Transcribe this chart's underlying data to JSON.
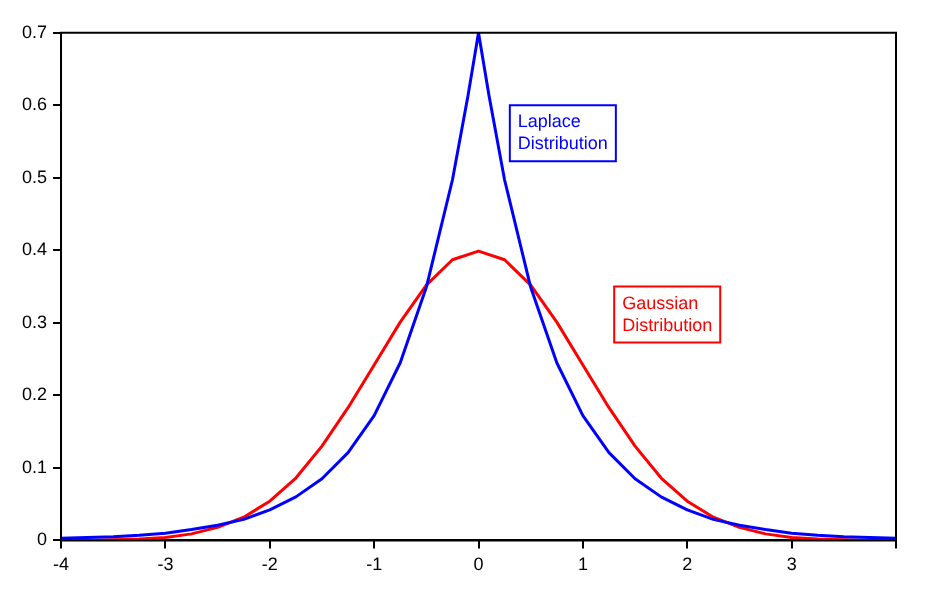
{
  "chart_data": {
    "type": "line",
    "xlim": [
      -4,
      4
    ],
    "xticks": [
      -4,
      -3,
      -2,
      -1,
      0,
      1,
      2,
      3,
      {
        "value": 4,
        "label": null
      }
    ],
    "ylim": [
      0,
      0.7
    ],
    "yticks": [
      0,
      0.1,
      0.2,
      0.3,
      0.4,
      0.5,
      0.6,
      0.7
    ],
    "grid": false,
    "legend": false,
    "marker": "none",
    "line_style": "solid",
    "series": [
      {
        "color": "#0000ff",
        "x": [
          -4,
          -3.75,
          -3.5,
          -3.25,
          -3,
          -2.75,
          -2.5,
          -2.25,
          -2,
          -1.75,
          -1.5,
          -1.25,
          -1,
          -0.75,
          -0.5,
          -0.25,
          -0.1,
          0,
          0.1,
          0.25,
          0.5,
          0.75,
          1,
          1.25,
          1.5,
          1.75,
          2,
          2.25,
          2.5,
          2.75,
          3,
          3.25,
          3.5,
          3.75,
          4
        ],
        "values": [
          0.003,
          0.004,
          0.005,
          0.007,
          0.01,
          0.015,
          0.021,
          0.029,
          0.042,
          0.06,
          0.085,
          0.121,
          0.172,
          0.245,
          0.349,
          0.497,
          0.614,
          0.7,
          0.614,
          0.497,
          0.349,
          0.245,
          0.172,
          0.121,
          0.085,
          0.06,
          0.042,
          0.029,
          0.021,
          0.015,
          0.01,
          0.007,
          0.005,
          0.004,
          0.003
        ]
      },
      {
        "color": "#ff0000",
        "x": [
          -4,
          -3.75,
          -3.5,
          -3.25,
          -3,
          -2.75,
          -2.5,
          -2.25,
          -2,
          -1.75,
          -1.5,
          -1.25,
          -1,
          -0.75,
          -0.5,
          -0.25,
          0,
          0.25,
          0.5,
          0.75,
          1,
          1.25,
          1.5,
          1.75,
          2,
          2.25,
          2.5,
          2.75,
          3,
          3.25,
          3.5,
          3.75,
          4
        ],
        "values": [
          0.0,
          0.0,
          0.001,
          0.002,
          0.004,
          0.009,
          0.018,
          0.032,
          0.054,
          0.086,
          0.13,
          0.183,
          0.242,
          0.301,
          0.352,
          0.387,
          0.399,
          0.387,
          0.352,
          0.301,
          0.242,
          0.183,
          0.13,
          0.086,
          0.054,
          0.032,
          0.018,
          0.009,
          0.004,
          0.002,
          0.001,
          0.0,
          0.0
        ]
      }
    ],
    "annotations": [
      "Laplace Distribution",
      "Gaussian Distribution"
    ]
  }
}
